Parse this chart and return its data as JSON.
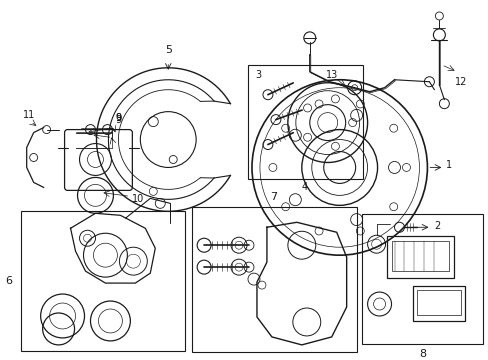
{
  "bg_color": "#ffffff",
  "line_color": "#1a1a1a",
  "fig_width": 4.89,
  "fig_height": 3.6,
  "dpi": 100,
  "label_fontsize": 8,
  "small_fontsize": 7
}
